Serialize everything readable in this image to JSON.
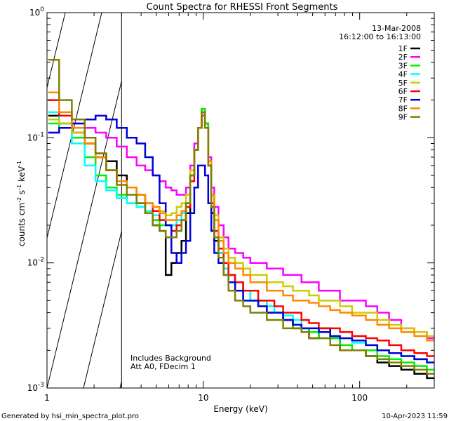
{
  "chart_data": {
    "type": "line",
    "title": "Count Spectra for RHESSI Front Segments",
    "xlabel": "Energy (keV)",
    "ylabel": "counts cm-2 s-1 keV-1",
    "xscale": "log",
    "yscale": "log",
    "xlim": [
      1,
      300
    ],
    "ylim": [
      0.001,
      1
    ],
    "x_tick_labels": [
      "1",
      "10",
      "100"
    ],
    "y_tick_labels": [
      "10-3",
      "10-2",
      "10-1",
      "100"
    ],
    "x": [
      1.1,
      1.3,
      1.6,
      1.9,
      2.2,
      2.6,
      3.0,
      3.5,
      4.0,
      4.5,
      5.0,
      5.5,
      6.0,
      6.5,
      7.0,
      7.5,
      8.0,
      8.5,
      9.0,
      9.5,
      10.0,
      10.5,
      11.0,
      11.5,
      12.0,
      13.0,
      14.0,
      15.0,
      17.0,
      19.0,
      21.0,
      24.0,
      27.0,
      30.0,
      35.0,
      40.0,
      45.0,
      50.0,
      60.0,
      70.0,
      80.0,
      100.0,
      120.0,
      140.0,
      170.0,
      200.0,
      250.0,
      290.0
    ],
    "series": [
      {
        "name": "1F",
        "color": "#000000",
        "values": [
          0.15,
          0.13,
          0.11,
          0.09,
          0.075,
          0.065,
          0.05,
          0.04,
          0.03,
          0.025,
          0.02,
          0.018,
          0.008,
          0.01,
          0.012,
          0.015,
          0.025,
          0.05,
          0.08,
          0.12,
          0.17,
          0.13,
          0.06,
          0.025,
          0.015,
          0.012,
          0.009,
          0.008,
          0.007,
          0.006,
          0.005,
          0.005,
          0.004,
          0.004,
          0.0035,
          0.003,
          0.003,
          0.0025,
          0.003,
          0.0025,
          0.002,
          0.002,
          0.0018,
          0.0016,
          0.0015,
          0.0014,
          0.0013,
          0.0012
        ]
      },
      {
        "name": "2F",
        "color": "#ff00ff",
        "values": [
          0.11,
          0.12,
          0.13,
          0.12,
          0.11,
          0.1,
          0.085,
          0.07,
          0.06,
          0.055,
          0.05,
          0.045,
          0.04,
          0.038,
          0.035,
          0.035,
          0.04,
          0.06,
          0.09,
          0.12,
          0.15,
          0.12,
          0.07,
          0.04,
          0.028,
          0.02,
          0.016,
          0.013,
          0.012,
          0.011,
          0.01,
          0.01,
          0.009,
          0.009,
          0.008,
          0.008,
          0.007,
          0.007,
          0.006,
          0.006,
          0.005,
          0.005,
          0.0045,
          0.004,
          0.0035,
          0.003,
          0.0028,
          0.0025
        ]
      },
      {
        "name": "3F",
        "color": "#00ee00",
        "values": [
          0.13,
          0.12,
          0.1,
          0.07,
          0.05,
          0.04,
          0.035,
          0.03,
          0.028,
          0.025,
          0.022,
          0.02,
          0.02,
          0.02,
          0.022,
          0.025,
          0.03,
          0.05,
          0.08,
          0.12,
          0.17,
          0.13,
          0.06,
          0.03,
          0.018,
          0.012,
          0.009,
          0.007,
          0.006,
          0.005,
          0.005,
          0.0045,
          0.004,
          0.004,
          0.0035,
          0.003,
          0.003,
          0.0028,
          0.0025,
          0.0025,
          0.0022,
          0.002,
          0.002,
          0.0018,
          0.0017,
          0.0016,
          0.0015,
          0.0014
        ]
      },
      {
        "name": "4F",
        "color": "#00ffff",
        "values": [
          0.16,
          0.13,
          0.09,
          0.06,
          0.045,
          0.038,
          0.033,
          0.03,
          0.028,
          0.026,
          0.024,
          0.022,
          0.02,
          0.02,
          0.022,
          0.025,
          0.03,
          0.05,
          0.08,
          0.12,
          0.16,
          0.12,
          0.06,
          0.028,
          0.016,
          0.012,
          0.009,
          0.008,
          0.007,
          0.006,
          0.005,
          0.005,
          0.0045,
          0.004,
          0.0038,
          0.0035,
          0.003,
          0.003,
          0.0028,
          0.0026,
          0.0025,
          0.0023,
          0.0022,
          0.002,
          0.0019,
          0.0018,
          0.0017,
          0.0016
        ]
      },
      {
        "name": "5F",
        "color": "#cccc00",
        "values": [
          0.14,
          0.13,
          0.11,
          0.09,
          0.07,
          0.055,
          0.045,
          0.04,
          0.035,
          0.03,
          0.028,
          0.026,
          0.024,
          0.025,
          0.028,
          0.03,
          0.035,
          0.055,
          0.08,
          0.12,
          0.16,
          0.12,
          0.065,
          0.035,
          0.024,
          0.016,
          0.013,
          0.011,
          0.01,
          0.009,
          0.008,
          0.008,
          0.007,
          0.007,
          0.0065,
          0.006,
          0.006,
          0.0055,
          0.005,
          0.005,
          0.0045,
          0.004,
          0.004,
          0.0035,
          0.0032,
          0.003,
          0.0028,
          0.0026
        ]
      },
      {
        "name": "6F",
        "color": "#ff0000",
        "values": [
          0.2,
          0.15,
          0.12,
          0.09,
          0.07,
          0.055,
          0.045,
          0.04,
          0.035,
          0.03,
          0.026,
          0.022,
          0.02,
          0.018,
          0.02,
          0.022,
          0.028,
          0.045,
          0.08,
          0.12,
          0.16,
          0.12,
          0.06,
          0.03,
          0.018,
          0.013,
          0.01,
          0.008,
          0.007,
          0.006,
          0.006,
          0.005,
          0.005,
          0.0045,
          0.004,
          0.004,
          0.0035,
          0.0033,
          0.003,
          0.003,
          0.0028,
          0.0026,
          0.0025,
          0.0024,
          0.0022,
          0.002,
          0.0019,
          0.0018
        ]
      },
      {
        "name": "7F",
        "color": "#0000dd",
        "values": [
          0.11,
          0.12,
          0.13,
          0.14,
          0.15,
          0.14,
          0.12,
          0.1,
          0.09,
          0.07,
          0.05,
          0.03,
          0.02,
          0.012,
          0.01,
          0.012,
          0.015,
          0.025,
          0.04,
          0.06,
          0.06,
          0.05,
          0.03,
          0.018,
          0.012,
          0.01,
          0.008,
          0.007,
          0.006,
          0.005,
          0.005,
          0.0045,
          0.004,
          0.004,
          0.0035,
          0.0032,
          0.003,
          0.003,
          0.0028,
          0.0026,
          0.0025,
          0.0024,
          0.0022,
          0.002,
          0.0019,
          0.0018,
          0.0017,
          0.0016
        ]
      },
      {
        "name": "8F",
        "color": "#ff8800",
        "values": [
          0.23,
          0.16,
          0.12,
          0.09,
          0.07,
          0.055,
          0.045,
          0.04,
          0.035,
          0.03,
          0.028,
          0.025,
          0.022,
          0.022,
          0.024,
          0.026,
          0.03,
          0.05,
          0.08,
          0.12,
          0.16,
          0.12,
          0.065,
          0.035,
          0.022,
          0.015,
          0.012,
          0.01,
          0.009,
          0.008,
          0.007,
          0.007,
          0.006,
          0.006,
          0.0055,
          0.005,
          0.005,
          0.0048,
          0.0045,
          0.0042,
          0.004,
          0.0038,
          0.0035,
          0.0032,
          0.003,
          0.0028,
          0.0026,
          0.0024
        ]
      },
      {
        "name": "9F",
        "color": "#808000",
        "values": [
          0.42,
          0.2,
          0.14,
          0.1,
          0.075,
          0.055,
          0.042,
          0.035,
          0.03,
          0.025,
          0.02,
          0.018,
          0.016,
          0.016,
          0.018,
          0.022,
          0.03,
          0.05,
          0.08,
          0.12,
          0.16,
          0.12,
          0.06,
          0.028,
          0.016,
          0.011,
          0.008,
          0.006,
          0.005,
          0.0045,
          0.004,
          0.004,
          0.0035,
          0.0035,
          0.003,
          0.003,
          0.0028,
          0.0025,
          0.0025,
          0.0022,
          0.002,
          0.002,
          0.0018,
          0.0017,
          0.0016,
          0.0015,
          0.0014,
          0.0013
        ]
      }
    ]
  },
  "legend": {
    "date": "13-Mar-2008",
    "time_range": "16:12:00 to 16:13:00"
  },
  "annotations": {
    "line1": "Includes Background",
    "line2": "Att A0, FDecim 1"
  },
  "footer": {
    "left": "Generated by hsi_min_spectra_plot.pro",
    "right": "10-Apr-2023 11:59"
  },
  "hatch_limit_kev": 3
}
